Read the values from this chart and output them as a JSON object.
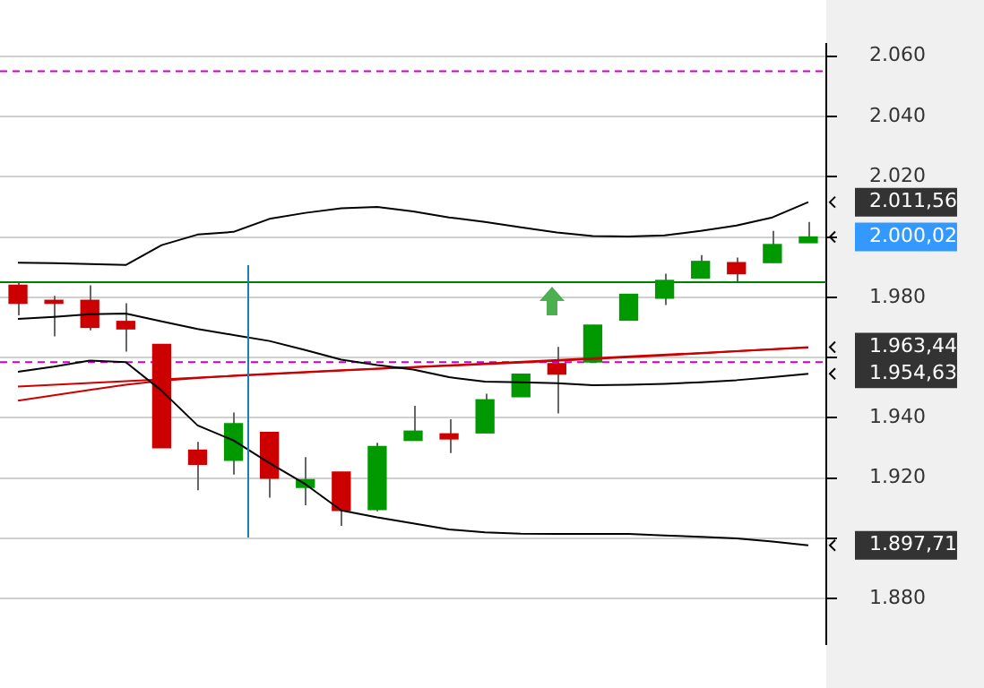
{
  "chart_data": {
    "type": "candlestick",
    "legend": false,
    "tick_labels": "y",
    "marker": "none",
    "grid": "y",
    "categories": [
      null,
      null,
      null,
      null,
      null,
      null,
      null,
      null,
      null,
      null,
      null,
      null,
      null,
      null,
      null,
      null,
      null,
      null,
      null,
      null,
      null,
      null,
      null
    ],
    "ohlc": [
      [
        1984,
        1985,
        1974,
        1978
      ],
      [
        1979,
        1980.5,
        1967,
        1978
      ],
      [
        1979,
        1984,
        1969,
        1970
      ],
      [
        1972,
        1978,
        1962,
        1969.5
      ],
      [
        1964.4,
        1964.4,
        1930.1,
        1930.1
      ],
      [
        1929.3,
        1932,
        1916,
        1924.6
      ],
      [
        1925.9,
        1941.8,
        1921.2,
        1938.1
      ],
      [
        1935.2,
        1935.2,
        1913.5,
        1920
      ],
      [
        1916.9,
        1927,
        1911,
        1919.5
      ],
      [
        1922,
        1922,
        1904.2,
        1909.3
      ],
      [
        1909.6,
        1931.7,
        1909,
        1930.5
      ],
      [
        1932.5,
        1944,
        1932.5,
        1935.6
      ],
      [
        1934.7,
        1939.5,
        1928.3,
        1933
      ],
      [
        1935,
        1948,
        1935,
        1946
      ],
      [
        1947,
        1954.5,
        1947,
        1954.5
      ],
      [
        1958,
        1963.5,
        1941.5,
        1954.5
      ],
      [
        1958.5,
        1970.8,
        1958.5,
        1970.8
      ],
      [
        1972.4,
        1981,
        1972.4,
        1981
      ],
      [
        1979.7,
        1987.8,
        1977.4,
        1985.6
      ],
      [
        1986.4,
        1994,
        1986.4,
        1991.9
      ],
      [
        1991.5,
        1993.2,
        1985,
        1987.8
      ],
      [
        1991.5,
        2002,
        1991.5,
        1997.5
      ],
      [
        1998.1,
        2005,
        1998.1,
        2000.02
      ]
    ],
    "colors": [
      "#cc0000",
      "#cc0000",
      "#cc0000",
      "#cc0000",
      "#cc0000",
      "#cc0000",
      "#009900",
      "#cc0000",
      "#009900",
      "#cc0000",
      "#009900",
      "#009900",
      "#cc0000",
      "#009900",
      "#009900",
      "#cc0000",
      "#009900",
      "#009900",
      "#009900",
      "#009900",
      "#cc0000",
      "#009900",
      "#009900"
    ],
    "series": [
      {
        "type": "line",
        "color": "#000000",
        "values": [
          1991.5,
          1991.3,
          1991,
          1990.7,
          1997.3,
          2000.8,
          2001.7,
          2006,
          2008,
          2009.5,
          2010,
          2008.5,
          2006.5,
          2005,
          2003.2,
          2001.5,
          2000.3,
          2000.2,
          2000.5,
          2002,
          2003.8,
          2006.5,
          2011.56
        ]
      },
      {
        "type": "line",
        "color": "#000000",
        "values": [
          1972.8,
          1973.5,
          1974.4,
          1974.6,
          1972,
          1969.5,
          1967.5,
          1965.5,
          1962.5,
          1959.3,
          1957.5,
          1956,
          1953.5,
          1952,
          1951.8,
          1951.5,
          1950.8,
          1951,
          1951.3,
          1951.8,
          1952.5,
          1953.5,
          1954.63
        ]
      },
      {
        "type": "line",
        "color": "#000000",
        "values": [
          1955.3,
          1957,
          1959,
          1958.5,
          1949,
          1937.5,
          1932.5,
          1925,
          1918,
          1909.3,
          1907,
          1905,
          1903,
          1902,
          1901.6,
          1901.5,
          1901.5,
          1901.5,
          1901,
          1900.5,
          1900,
          1899,
          1897.71
        ]
      },
      {
        "type": "line",
        "color": "#cc0000",
        "values": [
          1945.7,
          1947.5,
          1949.3,
          1951,
          1952.3,
          1953.2,
          1954,
          1954.6,
          1955.2,
          1955.8,
          1956.3,
          1956.8,
          1957.3,
          1957.8,
          1958.3,
          1958.9,
          1959.5,
          1960.1,
          1960.7,
          1961.4,
          1962.1,
          1962.8,
          1963.44
        ]
      },
      {
        "type": "line",
        "color": "#cc0000",
        "values": [
          1950.4,
          null,
          null,
          null,
          null,
          null,
          null,
          null,
          null,
          null,
          null,
          null,
          null,
          null,
          null,
          null,
          null,
          null,
          null,
          null,
          null,
          null,
          1963.3
        ]
      }
    ],
    "ref_lines": [
      {
        "axis": "y",
        "value": 1985,
        "color": "#008000",
        "line_style": "solid"
      },
      {
        "axis": "y",
        "value": 2055,
        "color": "#cc00cc",
        "line_style": "dashed"
      },
      {
        "axis": "y",
        "value": 1958.5,
        "color": "#cc00cc",
        "line_style": "dashed"
      }
    ],
    "ylim": [
      1865,
      2064
    ],
    "yticks": [
      {
        "value": 1880,
        "label": "1.880"
      },
      {
        "value": 1897.71,
        "label": "1.897,71"
      },
      {
        "value": 1900,
        "label": null
      },
      {
        "value": 1920,
        "label": "1.920"
      },
      {
        "value": 1940,
        "label": "1.940"
      },
      {
        "value": 1954.63,
        "label": "1.954,63"
      },
      {
        "value": 1960,
        "label": null
      },
      {
        "value": 1963.44,
        "label": "1.963,44"
      },
      {
        "value": 1980,
        "label": "1.980"
      },
      {
        "value": 2000,
        "label": null
      },
      {
        "value": 2000.02,
        "label": "2.000,02"
      },
      {
        "value": 2011.56,
        "label": "2.011,56"
      },
      {
        "value": 2020,
        "label": "2.020"
      },
      {
        "value": 2040,
        "label": "2.040"
      },
      {
        "value": 2060,
        "label": "2.060"
      }
    ]
  }
}
